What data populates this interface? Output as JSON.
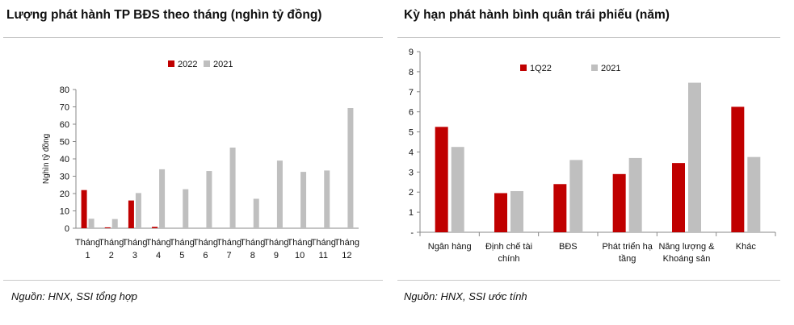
{
  "left": {
    "title": "Lượng phát hành TP BĐS theo tháng (nghìn tỷ đồng)",
    "source": "Nguồn: HNX, SSI tổng hợp"
  },
  "right": {
    "title": "Kỳ hạn phát hành bình quân trái phiếu (năm)",
    "source": "Nguồn: HNX, SSI ước tính"
  },
  "colors": {
    "red": "#c00000",
    "gray": "#bfbfbf"
  },
  "chart_data": [
    {
      "type": "bar",
      "title": "Lượng phát hành TP BĐS theo tháng (nghìn tỷ đồng)",
      "ylabel": "Nghìn tỷ đồng",
      "xlabel": "",
      "ylim": [
        0,
        80
      ],
      "yticks": [
        0,
        10,
        20,
        30,
        40,
        50,
        60,
        70,
        80
      ],
      "grid": false,
      "legend": "top-center",
      "categories": [
        "Tháng 1",
        "Tháng 2",
        "Tháng 3",
        "Tháng 4",
        "Tháng 5",
        "Tháng 6",
        "Tháng 7",
        "Tháng 8",
        "Tháng 9",
        "Tháng 10",
        "Tháng 11",
        "Tháng 12"
      ],
      "series": [
        {
          "name": "2022",
          "color": "#c00000",
          "values": [
            22,
            0.5,
            16,
            0.8,
            null,
            null,
            null,
            null,
            null,
            null,
            null,
            null
          ]
        },
        {
          "name": "2021",
          "color": "#bfbfbf",
          "values": [
            5.5,
            5.3,
            20.3,
            34,
            22.5,
            33,
            46.5,
            17,
            39,
            32.5,
            33.3,
            69.3
          ]
        }
      ]
    },
    {
      "type": "bar",
      "title": "Kỳ hạn phát hành bình quân trái phiếu (năm)",
      "xlabel": "",
      "ylabel": "",
      "ylim": [
        0,
        9
      ],
      "yticks": [
        0,
        1,
        2,
        3,
        4,
        5,
        6,
        7,
        8,
        9
      ],
      "ytick_labels": [
        "-",
        "1",
        "2",
        "3",
        "4",
        "5",
        "6",
        "7",
        "8",
        "9"
      ],
      "grid": false,
      "legend": "top-center",
      "categories": [
        "Ngân hàng",
        "Định chế tài chính",
        "BĐS",
        "Phát triển hạ tầng",
        "Năng lượng & Khoáng sản",
        "Khác"
      ],
      "series": [
        {
          "name": "1Q22",
          "color": "#c00000",
          "values": [
            5.25,
            1.95,
            2.4,
            2.9,
            3.45,
            6.25
          ]
        },
        {
          "name": "2021",
          "color": "#bfbfbf",
          "values": [
            4.25,
            2.05,
            3.6,
            3.7,
            7.45,
            3.75
          ]
        }
      ]
    }
  ]
}
